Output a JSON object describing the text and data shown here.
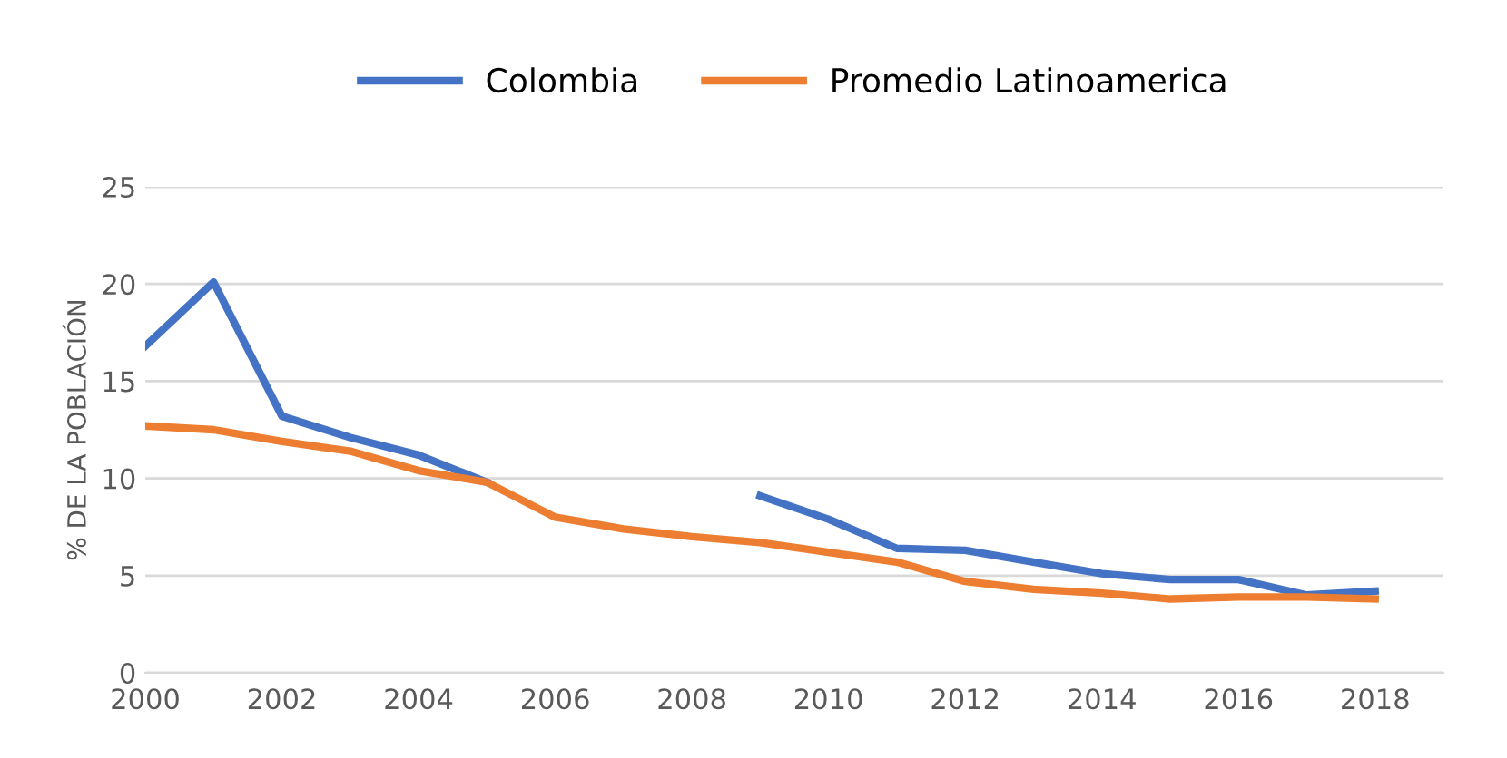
{
  "chart_data": {
    "type": "line",
    "ylabel": "% DE LA POBLACIÓN",
    "x": [
      2000,
      2001,
      2002,
      2003,
      2004,
      2005,
      2006,
      2007,
      2008,
      2009,
      2010,
      2011,
      2012,
      2013,
      2014,
      2015,
      2016,
      2017,
      2018
    ],
    "series": [
      {
        "name": "Colombia",
        "color": "#4472c4",
        "values": [
          16.8,
          20.1,
          13.2,
          12.1,
          11.2,
          9.8,
          null,
          null,
          null,
          9.1,
          7.9,
          6.4,
          6.3,
          5.7,
          5.1,
          4.8,
          4.8,
          4.0,
          4.2
        ]
      },
      {
        "name": "Promedio Latinoamerica",
        "color": "#ed7d31",
        "values": [
          12.7,
          12.5,
          11.9,
          11.4,
          10.4,
          9.8,
          8.0,
          7.4,
          7.0,
          6.7,
          6.2,
          5.7,
          4.7,
          4.3,
          4.1,
          3.8,
          3.9,
          3.9,
          3.8
        ]
      }
    ],
    "xlim": [
      2000,
      2019
    ],
    "xticks": [
      2000,
      2002,
      2004,
      2006,
      2008,
      2010,
      2012,
      2014,
      2016,
      2018
    ],
    "ylim": [
      0,
      25
    ],
    "yticks": [
      0,
      5,
      10,
      15,
      20,
      25
    ],
    "grid": "y",
    "legend": "top",
    "marker": "none",
    "line_style": "solid"
  }
}
